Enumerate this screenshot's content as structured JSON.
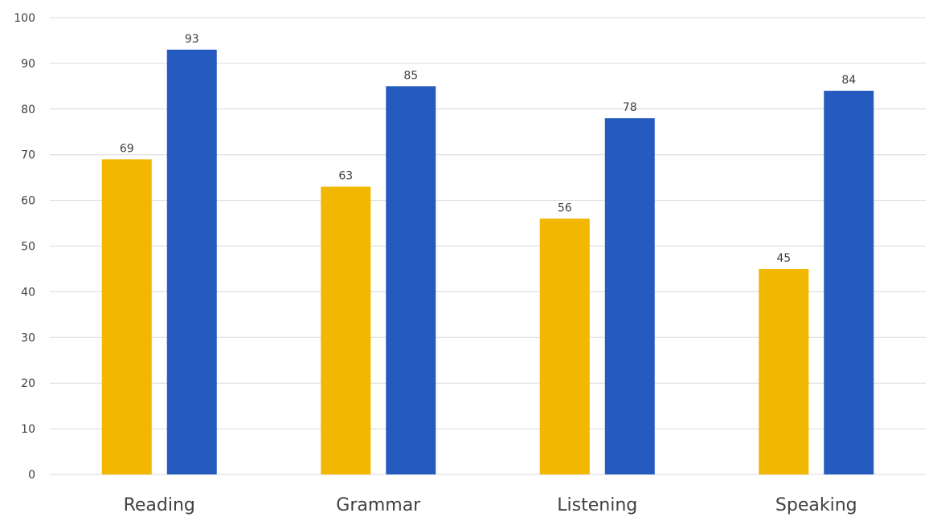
{
  "chart_data": {
    "type": "bar",
    "categories": [
      "Reading",
      "Grammar",
      "Listening",
      "Speaking"
    ],
    "series": [
      {
        "color": "#F2B701",
        "values": [
          69,
          63,
          56,
          45
        ]
      },
      {
        "color": "#255BBE",
        "values": [
          93,
          85,
          78,
          84
        ]
      }
    ],
    "ylim": [
      0,
      100
    ],
    "yticks": [
      0,
      10,
      20,
      30,
      40,
      50,
      60,
      70,
      80,
      90,
      100
    ],
    "grid": true,
    "data_labels": true,
    "legend": "none"
  }
}
